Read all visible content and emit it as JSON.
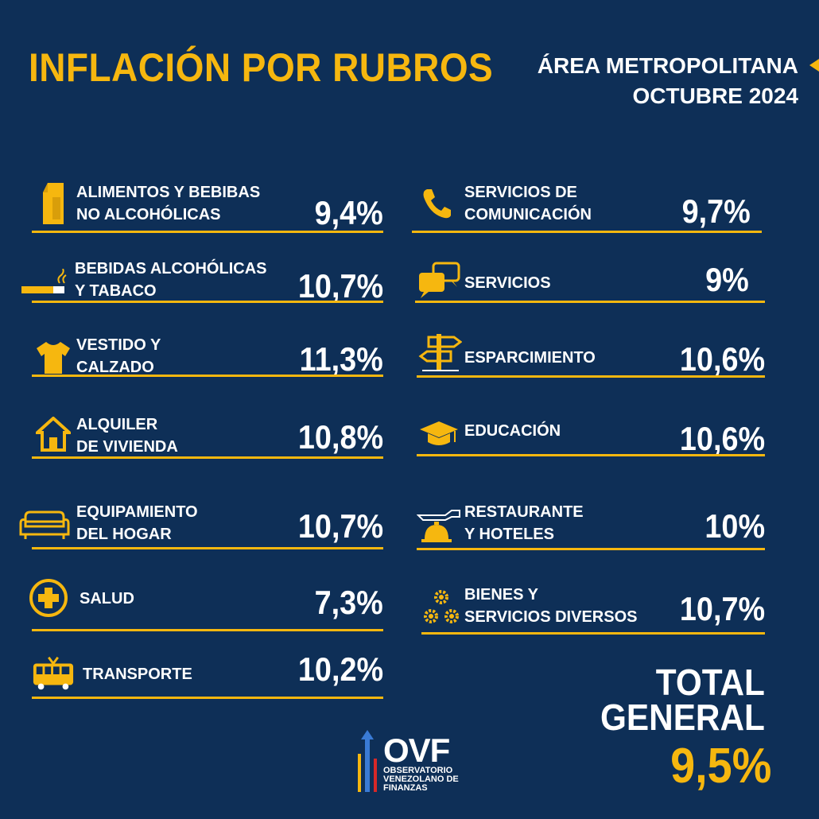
{
  "header": {
    "title": "INFLACIÓN POR RUBROS",
    "region": "ÁREA METROPOLITANA",
    "period": "OCTUBRE 2024"
  },
  "left_items": [
    {
      "icon": "milk-carton-icon",
      "line1": "ALIMENTOS Y BEBIBAS",
      "line2": "NO ALCOHÓLICAS",
      "value": "9,4%"
    },
    {
      "icon": "cigarette-icon",
      "line1": "BEBIDAS ALCOHÓLICAS",
      "line2": "Y TABACO",
      "value": "10,7%"
    },
    {
      "icon": "tshirt-icon",
      "line1": "VESTIDO Y",
      "line2": "CALZADO",
      "value": "11,3%"
    },
    {
      "icon": "house-icon",
      "line1": "ALQUILER",
      "line2": "DE VIVIENDA",
      "value": "10,8%"
    },
    {
      "icon": "sofa-icon",
      "line1": "EQUIPAMIENTO",
      "line2": "DEL HOGAR",
      "value": "10,7%"
    },
    {
      "icon": "health-cross-icon",
      "line1": "SALUD",
      "line2": "",
      "value": "7,3%"
    },
    {
      "icon": "bus-icon",
      "line1": "TRANSPORTE",
      "line2": "",
      "value": "10,2%"
    }
  ],
  "right_items": [
    {
      "icon": "phone-icon",
      "line1": "SERVICIOS DE",
      "line2": "COMUNICACIÓN",
      "value": "9,7%"
    },
    {
      "icon": "chat-bubbles-icon",
      "line1": "SERVICIOS",
      "line2": "",
      "value": "9%"
    },
    {
      "icon": "signpost-icon",
      "line1": "ESPARCIMIENTO",
      "line2": "",
      "value": "10,6%"
    },
    {
      "icon": "graduation-cap-icon",
      "line1": "EDUCACIÓN",
      "line2": "",
      "value": "10,6%"
    },
    {
      "icon": "service-bell-icon",
      "line1": "RESTAURANTE",
      "line2": "Y HOTELES",
      "value": "10%"
    },
    {
      "icon": "gears-icon",
      "line1": "BIENES Y",
      "line2": "SERVICIOS DIVERSOS",
      "value": "10,7%"
    }
  ],
  "total": {
    "line1": "TOTAL",
    "line2": "GENERAL",
    "value": "9,5%"
  },
  "logo": {
    "name": "OVF",
    "line1": "OBSERVATORIO",
    "line2": "VENEZOLANO DE",
    "line3": "FINANZAS"
  },
  "colors": {
    "background": "#0e2f57",
    "accent": "#f6b70f",
    "text": "#ffffff"
  }
}
